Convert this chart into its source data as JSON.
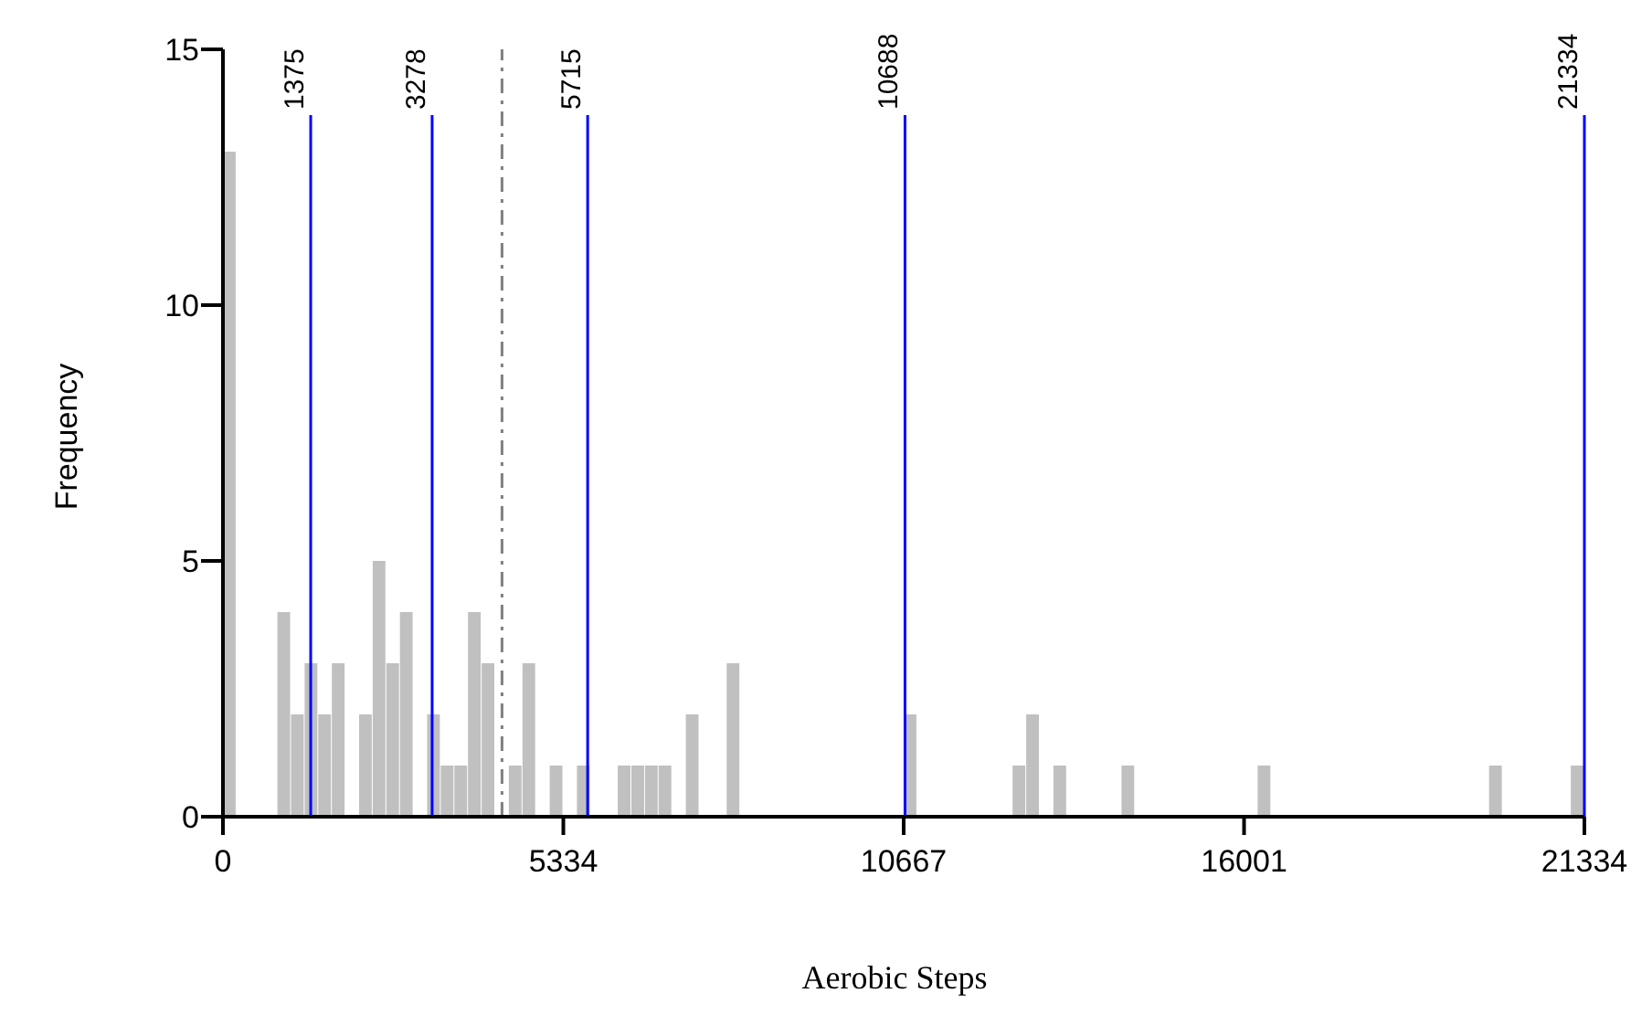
{
  "chart_data": {
    "type": "histogram",
    "xlabel": "Aerobic Steps",
    "ylabel": "Frequency",
    "bins": [
      0,
      213.34,
      426.68,
      640.02,
      853.36,
      1066.7,
      1280.04,
      1493.38,
      1706.72,
      1920.06,
      2133.4,
      2346.74,
      2560.08,
      2773.42,
      2986.76,
      3200.1,
      3413.44,
      3626.78,
      3840.12,
      4053.46,
      4266.8,
      4480.14,
      4693.48,
      4906.82,
      5120.16,
      5333.5,
      5546.84,
      5760.18,
      5973.52,
      6186.86,
      6400.2,
      6613.54,
      6826.88,
      7040.22,
      7253.56,
      7466.9,
      7680.24,
      7893.58,
      8106.92,
      8320.26,
      8533.6,
      8746.94,
      8960.28,
      9173.62,
      9386.96,
      9600.3,
      9813.64,
      10026.98,
      10240.32,
      10453.66,
      10667,
      10880.34,
      11093.68,
      11307.02,
      11520.36,
      11733.7,
      11947.04,
      12160.38,
      12373.72,
      12587.06,
      12800.4,
      13013.74,
      13227.08,
      13440.42,
      13653.76,
      13867.1,
      14080.44,
      14293.78,
      14507.12,
      14720.46,
      14933.8,
      15147.14,
      15360.48,
      15573.82,
      15787.16,
      16000.5,
      16213.84,
      16427.18,
      16640.52,
      16853.86,
      17067.2,
      17280.54,
      17493.88,
      17707.22,
      17920.56,
      18133.9,
      18347.24,
      18560.58,
      18773.92,
      18987.26,
      19200.6,
      19413.94,
      19627.28,
      19840.62,
      20053.96,
      20267.3,
      20480.64,
      20693.98,
      20907.32,
      21120.66,
      21334
    ],
    "values": [
      13,
      0,
      0,
      0,
      4,
      2,
      3,
      2,
      3,
      0,
      2,
      5,
      3,
      4,
      0,
      2,
      1,
      1,
      4,
      3,
      0,
      1,
      3,
      0,
      1,
      0,
      1,
      0,
      0,
      1,
      1,
      1,
      1,
      0,
      2,
      0,
      0,
      3,
      0,
      0,
      0,
      0,
      0,
      0,
      0,
      0,
      0,
      0,
      0,
      0,
      2,
      0,
      0,
      0,
      0,
      0,
      0,
      0,
      1,
      2,
      0,
      1,
      0,
      0,
      0,
      0,
      1,
      0,
      0,
      0,
      0,
      0,
      0,
      0,
      0,
      0,
      1,
      0,
      0,
      0,
      0,
      0,
      0,
      0,
      0,
      0,
      0,
      0,
      0,
      0,
      0,
      0,
      0,
      1,
      0,
      0,
      0,
      0,
      0,
      1
    ],
    "color": "#c0c0c0",
    "xlim": [
      0,
      21334
    ],
    "xticks": [
      0,
      5334,
      10667,
      16001,
      21334
    ],
    "ylim": [
      0,
      15
    ],
    "yticks": [
      0,
      5,
      10,
      15
    ],
    "ref_lines": [
      {
        "axis": "x",
        "value": 1375,
        "label": "1375",
        "color": "#0000ff"
      },
      {
        "axis": "x",
        "value": 3278,
        "label": "3278",
        "color": "#0000ff"
      },
      {
        "axis": "x",
        "value": 5715,
        "label": "5715",
        "color": "#0000ff"
      },
      {
        "axis": "x",
        "value": 10688,
        "label": "10688",
        "color": "#0000ff"
      },
      {
        "axis": "x",
        "value": 21334,
        "label": "21334",
        "color": "#0000ff"
      },
      {
        "axis": "x",
        "value": 4373,
        "color": "#808080",
        "line_style": "dashed"
      }
    ],
    "grid": false
  }
}
